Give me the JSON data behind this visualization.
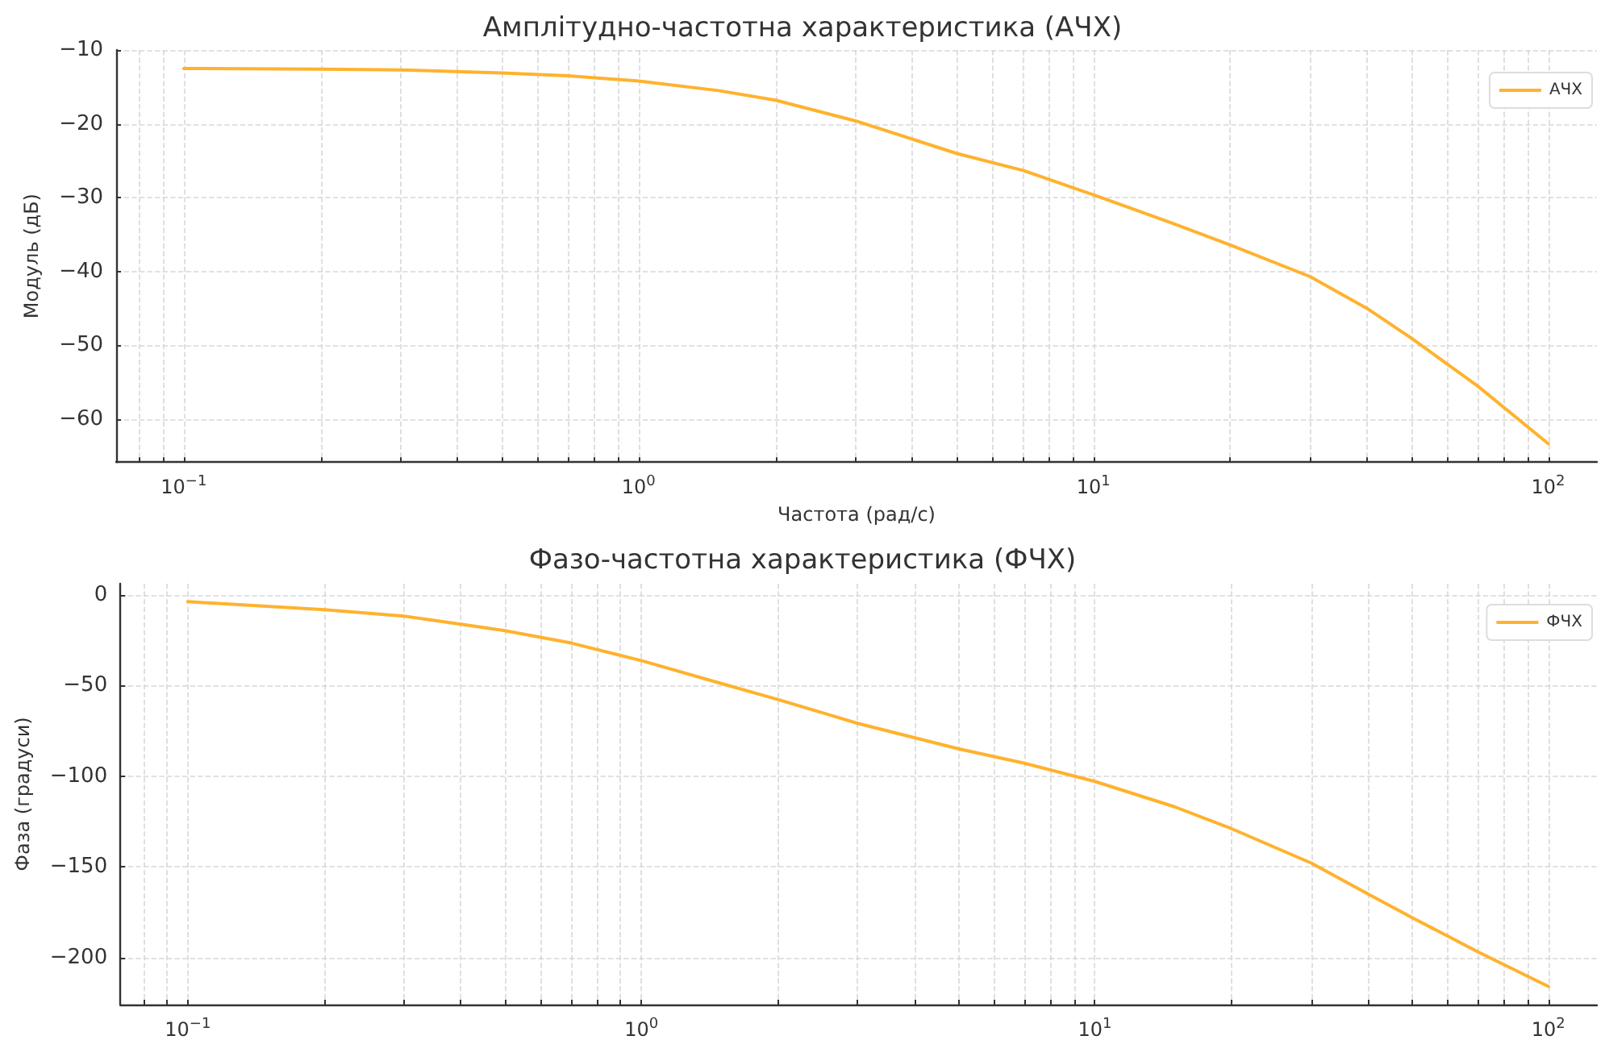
{
  "chart_data": [
    {
      "type": "line",
      "title": "Амплітудно-частотна характеристика (АЧХ)",
      "xlabel": "Частота (рад/с)",
      "ylabel": "Модуль (дБ)",
      "log": "x",
      "grid": true,
      "legend": "top right",
      "marker": "none",
      "line_style": "solid",
      "xlim": [
        0.071,
        128
      ],
      "ylim": [
        -65.8,
        -10
      ],
      "xticks": [
        {
          "value": 0.1,
          "label": "10$^{−1}$"
        },
        {
          "value": 1,
          "label": "10$^{0}$"
        },
        {
          "value": 10,
          "label": "10$^{1}$"
        },
        {
          "value": 100,
          "label": "10$^{2}$"
        },
        {
          "value": 0.08,
          "label": null
        },
        {
          "value": 0.09,
          "label": null
        },
        {
          "value": 0.2,
          "label": null
        },
        {
          "value": 0.3,
          "label": null
        },
        {
          "value": 0.4,
          "label": null
        },
        {
          "value": 0.5,
          "label": null
        },
        {
          "value": 0.6,
          "label": null
        },
        {
          "value": 0.7,
          "label": null
        },
        {
          "value": 0.8,
          "label": null
        },
        {
          "value": 0.9,
          "label": null
        },
        {
          "value": 2,
          "label": null
        },
        {
          "value": 3,
          "label": null
        },
        {
          "value": 4,
          "label": null
        },
        {
          "value": 5,
          "label": null
        },
        {
          "value": 6,
          "label": null
        },
        {
          "value": 7,
          "label": null
        },
        {
          "value": 8,
          "label": null
        },
        {
          "value": 9,
          "label": null
        },
        {
          "value": 20,
          "label": null
        },
        {
          "value": 30,
          "label": null
        },
        {
          "value": 40,
          "label": null
        },
        {
          "value": 50,
          "label": null
        },
        {
          "value": 60,
          "label": null
        },
        {
          "value": 70,
          "label": null
        },
        {
          "value": 80,
          "label": null
        },
        {
          "value": 90,
          "label": null
        }
      ],
      "yticks": [
        -60,
        -50,
        -40,
        -30,
        -20,
        -10
      ],
      "x": [
        0.1,
        0.2,
        0.3,
        0.5,
        0.7,
        1,
        1.5,
        2,
        3,
        5,
        7,
        10,
        15,
        20,
        30,
        40,
        50,
        70,
        100
      ],
      "series": [
        {
          "name": "АЧХ",
          "color": "#ffb22e",
          "values": [
            -12.5,
            -12.6,
            -12.7,
            -13.1,
            -13.5,
            -14.2,
            -15.5,
            -16.8,
            -19.6,
            -24,
            -26.3,
            -29.6,
            -33.5,
            -36.4,
            -40.7,
            -45,
            -49,
            -55.5,
            -63.3
          ]
        }
      ]
    },
    {
      "type": "line",
      "title": "Фазо-частотна характеристика (ФЧХ)",
      "ylabel": "Фаза (градуси)",
      "log": "x",
      "grid": true,
      "legend": "top right",
      "marker": "none",
      "line_style": "solid",
      "xlim": [
        0.071,
        128
      ],
      "ylim": [
        -226,
        6
      ],
      "xticks": [
        {
          "value": 0.1,
          "label": "10$^{−1}$"
        },
        {
          "value": 1,
          "label": "10$^{0}$"
        },
        {
          "value": 10,
          "label": "10$^{1}$"
        },
        {
          "value": 100,
          "label": "10$^{2}$"
        },
        {
          "value": 0.08,
          "label": null
        },
        {
          "value": 0.09,
          "label": null
        },
        {
          "value": 0.2,
          "label": null
        },
        {
          "value": 0.3,
          "label": null
        },
        {
          "value": 0.4,
          "label": null
        },
        {
          "value": 0.5,
          "label": null
        },
        {
          "value": 0.6,
          "label": null
        },
        {
          "value": 0.7,
          "label": null
        },
        {
          "value": 0.8,
          "label": null
        },
        {
          "value": 0.9,
          "label": null
        },
        {
          "value": 2,
          "label": null
        },
        {
          "value": 3,
          "label": null
        },
        {
          "value": 4,
          "label": null
        },
        {
          "value": 5,
          "label": null
        },
        {
          "value": 6,
          "label": null
        },
        {
          "value": 7,
          "label": null
        },
        {
          "value": 8,
          "label": null
        },
        {
          "value": 9,
          "label": null
        },
        {
          "value": 20,
          "label": null
        },
        {
          "value": 30,
          "label": null
        },
        {
          "value": 40,
          "label": null
        },
        {
          "value": 50,
          "label": null
        },
        {
          "value": 60,
          "label": null
        },
        {
          "value": 70,
          "label": null
        },
        {
          "value": 80,
          "label": null
        },
        {
          "value": 90,
          "label": null
        }
      ],
      "yticks": [
        -200,
        -150,
        -100,
        -50,
        0
      ],
      "x": [
        0.1,
        0.2,
        0.3,
        0.4,
        0.5,
        0.7,
        1,
        1.5,
        2,
        3,
        5,
        7,
        10,
        15,
        20,
        30,
        40,
        50,
        70,
        100
      ],
      "series": [
        {
          "name": "ФЧХ",
          "color": "#ffb22e",
          "values": [
            -3.9,
            -8.3,
            -11.9,
            -16.3,
            -19.9,
            -26.7,
            -36.4,
            -49,
            -57.8,
            -71,
            -85,
            -93,
            -103,
            -117,
            -129,
            -148,
            -165,
            -178,
            -197,
            -216
          ]
        }
      ]
    }
  ]
}
